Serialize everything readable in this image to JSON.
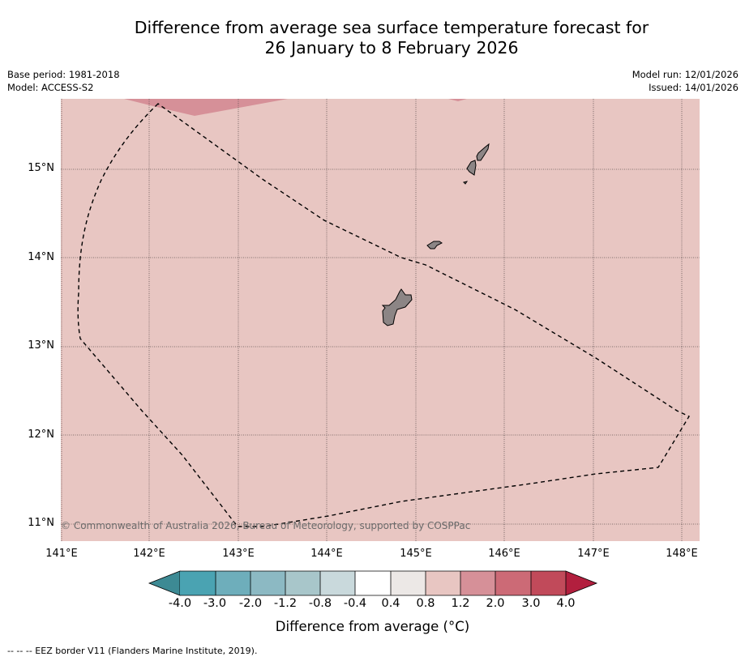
{
  "title": {
    "line1": "Difference from average sea surface temperature forecast for",
    "line2": "26 January to 8 February 2026"
  },
  "meta": {
    "base_period": "Base period: 1981-2018",
    "model": "Model: ACCESS-S2",
    "model_run": "Model run: 12/01/2026",
    "issued": "Issued: 14/01/2026"
  },
  "map": {
    "lon_range": [
      141.0,
      148.2
    ],
    "lat_range": [
      10.8,
      15.8
    ],
    "lat_labels": [
      "15°N",
      "14°N",
      "13°N",
      "12°N",
      "11°N"
    ],
    "lon_labels": [
      "141°E",
      "142°E",
      "143°E",
      "144°E",
      "145°E",
      "146°E",
      "147°E",
      "148°E"
    ],
    "background_color": "#e8c6c2",
    "warm_patch_color": "#d69098",
    "land_color": "#8c8585",
    "copyright": "© Commonwealth of Australia 2026, Bureau of Meteorology, supported by COSPPac"
  },
  "colorbar": {
    "labels": [
      "-4.0",
      "-3.0",
      "-2.0",
      "-1.2",
      "-0.8",
      "-0.4",
      "0.4",
      "0.8",
      "1.2",
      "2.0",
      "3.0",
      "4.0"
    ],
    "colors": [
      "#4aa3b2",
      "#6eaebb",
      "#8cb9c3",
      "#a8c6ca",
      "#c9d9dc",
      "#ffffff",
      "#ece8e6",
      "#e8c6c2",
      "#d69098",
      "#cc6a76",
      "#c14a5a"
    ],
    "under_color": "#3d8a94",
    "over_color": "#b21f3e",
    "title": "Difference from average (°C)"
  },
  "footer": "--  --  -- EEZ border V11 (Flanders Marine Institute, 2019)."
}
